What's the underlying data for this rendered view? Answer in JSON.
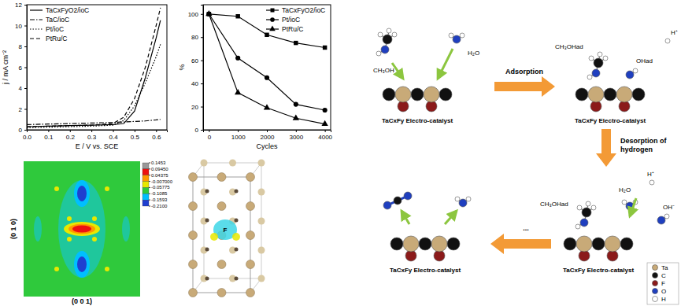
{
  "chart_data": [
    {
      "type": "line",
      "x_label": "E / V vs. SCE",
      "y_label": "j / mA cm⁻²",
      "x": [
        0,
        0.1,
        0.2,
        0.3,
        0.4,
        0.45,
        0.5,
        0.55,
        0.6,
        0.62
      ],
      "xlim": [
        0,
        0.65
      ],
      "xticks": [
        {
          "value": 0,
          "label": "0.0"
        },
        {
          "value": 0.1,
          "label": "0.1"
        },
        {
          "value": 0.2,
          "label": "0.2"
        },
        {
          "value": 0.3,
          "label": "0.3"
        },
        {
          "value": 0.4,
          "label": "0.4"
        },
        {
          "value": 0.5,
          "label": "0.5"
        },
        {
          "value": 0.6,
          "label": "0.6"
        }
      ],
      "ylim": [
        0,
        12
      ],
      "yticks": [
        0,
        2,
        4,
        6,
        8,
        10,
        12
      ],
      "grid": false,
      "legend": "upper left",
      "series": [
        {
          "name": "TaCxFyO2/ioC",
          "color": "#000000",
          "line_style": "solid",
          "values": [
            0.3,
            0.35,
            0.4,
            0.45,
            0.5,
            0.6,
            1.8,
            5.0,
            8.8,
            10.5
          ]
        },
        {
          "name": "TaC/ioC",
          "color": "#000000",
          "line_style": "dashdot",
          "values": [
            0.5,
            0.55,
            0.6,
            0.65,
            0.7,
            0.75,
            0.8,
            0.85,
            0.95,
            1.0
          ]
        },
        {
          "name": "Pt/ioC",
          "color": "#000000",
          "line_style": "dotted",
          "values": [
            0.2,
            0.25,
            0.3,
            0.35,
            0.45,
            0.9,
            2.3,
            4.5,
            7.0,
            8.2
          ]
        },
        {
          "name": "PtRu/C",
          "color": "#000000",
          "line_style": "dashed",
          "values": [
            0.3,
            0.35,
            0.4,
            0.45,
            0.6,
            1.2,
            3.0,
            6.0,
            10.0,
            11.7
          ]
        }
      ]
    },
    {
      "type": "line",
      "x_label": "Cycles",
      "y_label": "%",
      "x": [
        0,
        1000,
        2000,
        3000,
        4000
      ],
      "xlim": [
        -200,
        4200
      ],
      "xticks": [
        0,
        1000,
        2000,
        3000,
        4000
      ],
      "ylim": [
        0,
        108
      ],
      "yticks": [
        0,
        20,
        40,
        60,
        80,
        100
      ],
      "grid": false,
      "legend": "upper right",
      "series": [
        {
          "name": "TaCxFyO2/ioC",
          "color": "#000000",
          "line_style": "solid",
          "marker": "square",
          "values": [
            100,
            98,
            82,
            75,
            71
          ]
        },
        {
          "name": "Pt/ioC",
          "color": "#000000",
          "line_style": "solid",
          "marker": "circle",
          "values": [
            100,
            62,
            45,
            22,
            17
          ]
        },
        {
          "name": "PtRu/C",
          "color": "#000000",
          "line_style": "solid",
          "marker": "triangle",
          "values": [
            100,
            32,
            19,
            10,
            5
          ]
        }
      ]
    }
  ],
  "contour": {
    "x_label": "(0 0 1)",
    "y_label": "(0 1 0)",
    "colorbar": {
      "range": [
        -0.21,
        0.1453
      ],
      "ticks": [
        0.1453,
        {
          "value": 0.0945,
          "label": "0.09450"
        },
        0.04375,
        {
          "value": -0.007,
          "label": "-0.007000"
        },
        -0.05775,
        -0.1085,
        -0.1593,
        {
          "value": -0.21,
          "label": "-0.2100"
        }
      ]
    }
  },
  "crystal": {
    "labels": [
      "F"
    ]
  },
  "mechanism": {
    "steps": [
      {
        "catalyst": "TaCxFy Electro-catalyst",
        "species": [
          "CH₃OH",
          "H₂O"
        ]
      },
      {
        "catalyst": "TaCxFy Electro-catalyst",
        "species": [
          "CH₃OHad",
          "OHad",
          "H⁺"
        ]
      },
      {
        "catalyst": "TaCxFy Electro-catalyst",
        "species": [
          "CH₃OHad",
          "H₂O",
          "H⁺",
          "OH⁻"
        ]
      },
      {
        "catalyst": "TaCxFy Electro-catalyst",
        "species": []
      }
    ],
    "arrows": [
      {
        "label": [
          "Adsorption"
        ]
      },
      {
        "label": [
          "Desorption of",
          "hydrogen"
        ]
      },
      {
        "label": [
          "..."
        ]
      }
    ],
    "legend": [
      "Ta",
      "C",
      "F",
      "O",
      "H"
    ]
  }
}
